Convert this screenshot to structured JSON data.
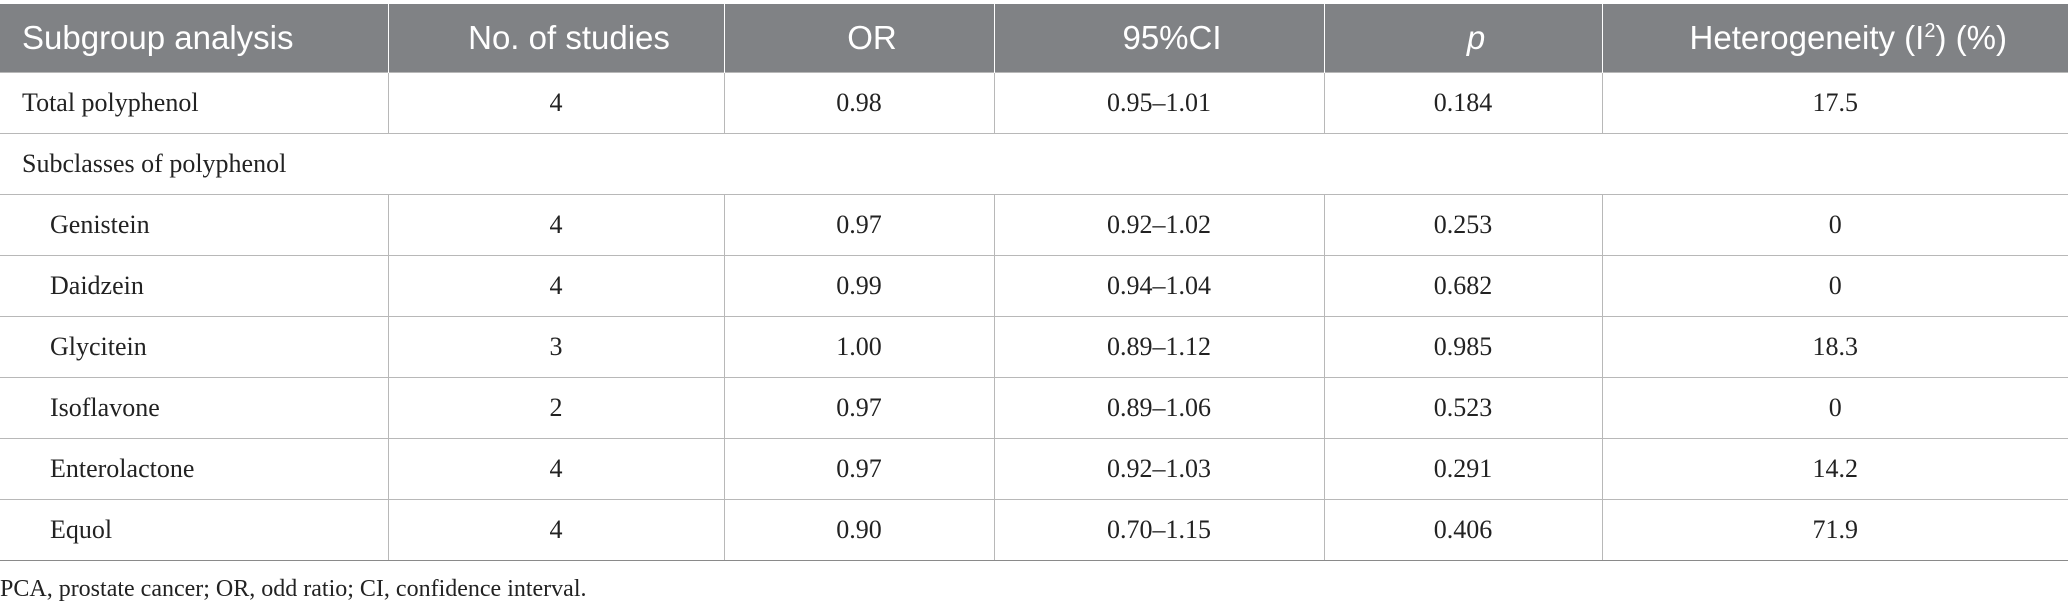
{
  "table": {
    "headers": {
      "subgroup": "Subgroup analysis",
      "studies": "No. of studies",
      "or": "OR",
      "ci": "95%CI",
      "p": "p",
      "heterogeneity_pre": "Heterogeneity (I",
      "heterogeneity_sup": "2",
      "heterogeneity_post": ") (%)"
    },
    "total": {
      "label": "Total polyphenol",
      "studies": "4",
      "or": "0.98",
      "ci": "0.95–1.01",
      "p": "0.184",
      "heterogeneity": "17.5"
    },
    "section_label": "Subclasses of polyphenol",
    "rows": [
      {
        "label": "Genistein",
        "studies": "4",
        "or": "0.97",
        "ci": "0.92–1.02",
        "p": "0.253",
        "heterogeneity": "0"
      },
      {
        "label": "Daidzein",
        "studies": "4",
        "or": "0.99",
        "ci": "0.94–1.04",
        "p": "0.682",
        "heterogeneity": "0"
      },
      {
        "label": "Glycitein",
        "studies": "3",
        "or": "1.00",
        "ci": "0.89–1.12",
        "p": "0.985",
        "heterogeneity": "18.3"
      },
      {
        "label": "Isoflavone",
        "studies": "2",
        "or": "0.97",
        "ci": "0.89–1.06",
        "p": "0.523",
        "heterogeneity": "0"
      },
      {
        "label": "Enterolactone",
        "studies": "4",
        "or": "0.97",
        "ci": "0.92–1.03",
        "p": "0.291",
        "heterogeneity": "14.2"
      },
      {
        "label": "Equol",
        "studies": "4",
        "or": "0.90",
        "ci": "0.70–1.15",
        "p": "0.406",
        "heterogeneity": "71.9"
      }
    ]
  },
  "footnote": "PCA, prostate cancer; OR, odd ratio; CI, confidence interval.",
  "colors": {
    "header_background": "#808285",
    "header_text": "#ffffff",
    "grid_line": "#b8b8b8",
    "body_text": "#222222"
  }
}
